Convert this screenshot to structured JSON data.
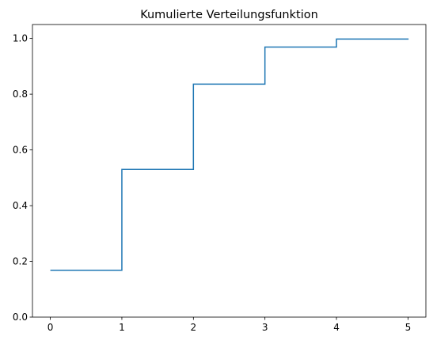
{
  "chart_data": {
    "type": "line",
    "step": "post",
    "title": "Kumulierte Verteilungsfunktion",
    "xlabel": "",
    "ylabel": "",
    "x": [
      0,
      1,
      2,
      3,
      4,
      5
    ],
    "series": [
      {
        "values": [
          0.168,
          0.53,
          0.836,
          0.969,
          0.998,
          1.0
        ]
      }
    ],
    "xlim": [
      -0.25,
      5.25
    ],
    "ylim": [
      0.0,
      1.05
    ],
    "xticks": [
      0,
      1,
      2,
      3,
      4,
      5
    ],
    "xtick_labels": [
      "0",
      "1",
      "2",
      "3",
      "4",
      "5"
    ],
    "yticks": [
      0.0,
      0.2,
      0.4,
      0.6,
      0.8,
      1.0
    ],
    "ytick_labels": [
      "0.0",
      "0.2",
      "0.4",
      "0.6",
      "0.8",
      "1.0"
    ],
    "grid": false,
    "legend": "none",
    "color": "#1f77b4"
  }
}
